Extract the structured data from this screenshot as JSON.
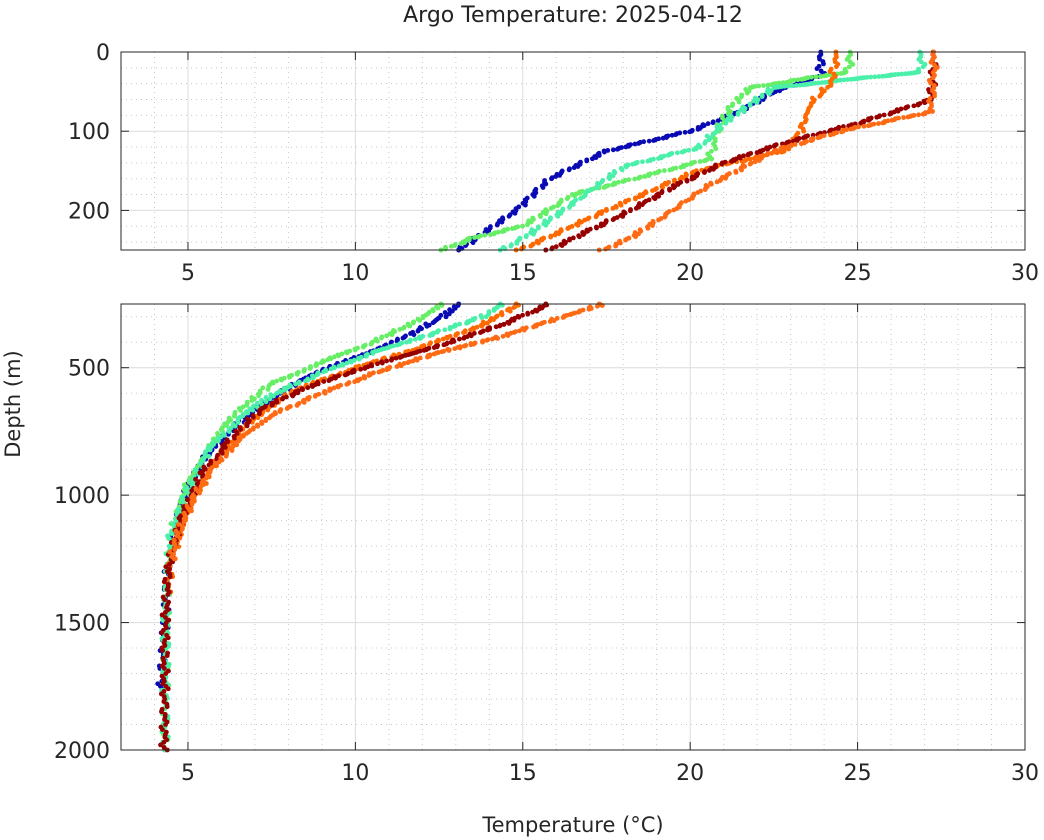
{
  "chart_data": {
    "type": "scatter",
    "title": "Argo Temperature: 2025-04-12",
    "xlabel": "Temperature (°C)",
    "ylabel": "Depth (m)",
    "xlim": [
      3,
      30
    ],
    "x_ticks": [
      "5",
      "10",
      "15",
      "20",
      "25",
      "30"
    ],
    "grid": "major and minor, dotted",
    "legend": "none",
    "panels": [
      {
        "name": "upper",
        "ylim": [
          0,
          250
        ],
        "y_ticks": [
          "0",
          "100",
          "200"
        ]
      },
      {
        "name": "lower",
        "ylim": [
          250,
          2000
        ],
        "y_ticks": [
          "500",
          "1000",
          "1500",
          "2000"
        ]
      }
    ],
    "series": [
      {
        "color": "#0a0ab4",
        "points": [
          [
            23.9,
            0
          ],
          [
            23.9,
            30
          ],
          [
            22.5,
            50
          ],
          [
            21.5,
            75
          ],
          [
            20,
            100
          ],
          [
            17.5,
            125
          ],
          [
            15.8,
            160
          ],
          [
            14.8,
            200
          ],
          [
            13.1,
            250
          ],
          [
            12.6,
            300
          ],
          [
            11.5,
            380
          ],
          [
            10,
            460
          ],
          [
            8.5,
            540
          ],
          [
            7.5,
            620
          ],
          [
            6.5,
            720
          ],
          [
            5.5,
            850
          ],
          [
            4.9,
            1000
          ],
          [
            4.6,
            1150
          ],
          [
            4.4,
            1300
          ],
          [
            4.3,
            1500
          ],
          [
            4.2,
            1780
          ]
        ]
      },
      {
        "color": "#66ef66",
        "points": [
          [
            24.8,
            0
          ],
          [
            24.7,
            25
          ],
          [
            21.8,
            45
          ],
          [
            21.2,
            70
          ],
          [
            20.8,
            100
          ],
          [
            20.6,
            135
          ],
          [
            16.5,
            180
          ],
          [
            15,
            220
          ],
          [
            13.5,
            235
          ],
          [
            12.6,
            250
          ],
          [
            11.8,
            320
          ],
          [
            10.5,
            400
          ],
          [
            9,
            480
          ],
          [
            7.5,
            560
          ],
          [
            6.6,
            660
          ],
          [
            5.8,
            780
          ],
          [
            5,
            950
          ],
          [
            4.5,
            1150
          ],
          [
            4.35,
            1400
          ],
          [
            4.3,
            2000
          ]
        ]
      },
      {
        "color": "#4af0aa",
        "points": [
          [
            26.9,
            0
          ],
          [
            26.9,
            25
          ],
          [
            22.5,
            45
          ],
          [
            21,
            90
          ],
          [
            20.3,
            120
          ],
          [
            18,
            145
          ],
          [
            16.2,
            200
          ],
          [
            15.2,
            230
          ],
          [
            14.4,
            250
          ],
          [
            13.8,
            300
          ],
          [
            12,
            380
          ],
          [
            10.5,
            440
          ],
          [
            9,
            520
          ],
          [
            7.6,
            600
          ],
          [
            6.5,
            700
          ],
          [
            5.6,
            830
          ],
          [
            5,
            980
          ],
          [
            4.5,
            1150
          ],
          [
            4.35,
            1400
          ],
          [
            4.3,
            2010
          ]
        ]
      },
      {
        "color": "#ff6a00",
        "points": [
          [
            24.4,
            0
          ],
          [
            24.2,
            40
          ],
          [
            23.6,
            65
          ],
          [
            23.3,
            100
          ],
          [
            22.8,
            125
          ],
          [
            20.2,
            150
          ],
          [
            17.5,
            200
          ],
          [
            15.7,
            235
          ],
          [
            14.9,
            250
          ],
          [
            13.8,
            330
          ],
          [
            12,
            420
          ],
          [
            10,
            500
          ],
          [
            8,
            600
          ],
          [
            6.8,
            720
          ],
          [
            5.9,
            850
          ],
          [
            5,
            1050
          ],
          [
            4.5,
            1250
          ],
          [
            4.4,
            1380
          ]
        ]
      },
      {
        "color": "#960000",
        "points": [
          [
            27.3,
            0
          ],
          [
            27.2,
            60
          ],
          [
            26.5,
            70
          ],
          [
            25,
            90
          ],
          [
            22.8,
            115
          ],
          [
            21,
            140
          ],
          [
            19.5,
            170
          ],
          [
            18,
            205
          ],
          [
            17,
            225
          ],
          [
            15.8,
            250
          ],
          [
            14.4,
            330
          ],
          [
            12.6,
            410
          ],
          [
            10.5,
            490
          ],
          [
            8.7,
            570
          ],
          [
            7.2,
            660
          ],
          [
            6.2,
            790
          ],
          [
            5.4,
            920
          ],
          [
            4.8,
            1090
          ],
          [
            4.4,
            1300
          ],
          [
            4.3,
            1600
          ],
          [
            4.3,
            2000
          ]
        ]
      },
      {
        "color": "#ff6a14",
        "points": [
          [
            27.3,
            0
          ],
          [
            27.2,
            75
          ],
          [
            26.7,
            80
          ],
          [
            24.5,
            100
          ],
          [
            22.5,
            125
          ],
          [
            20.5,
            170
          ],
          [
            19.3,
            205
          ],
          [
            18.2,
            235
          ],
          [
            17.4,
            250
          ],
          [
            16.2,
            300
          ],
          [
            14.3,
            380
          ],
          [
            12.5,
            440
          ],
          [
            10.6,
            520
          ],
          [
            9,
            600
          ],
          [
            7.6,
            680
          ],
          [
            6.5,
            780
          ],
          [
            5.7,
            900
          ],
          [
            5.2,
            1000
          ],
          [
            4.7,
            1150
          ],
          [
            4.5,
            1250
          ]
        ]
      }
    ]
  }
}
